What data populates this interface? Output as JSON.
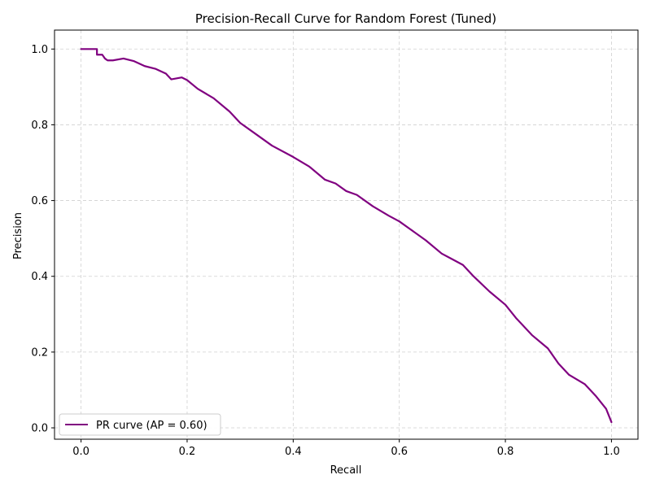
{
  "chart_data": {
    "type": "line",
    "title": "Precision-Recall Curve for Random Forest (Tuned)",
    "xlabel": "Recall",
    "ylabel": "Precision",
    "xlim": [
      -0.05,
      1.05
    ],
    "ylim": [
      -0.03,
      1.05
    ],
    "xticks": [
      0.0,
      0.2,
      0.4,
      0.6,
      0.8,
      1.0
    ],
    "yticks": [
      0.0,
      0.2,
      0.4,
      0.6,
      0.8,
      1.0
    ],
    "xtick_labels": [
      "0.0",
      "0.2",
      "0.4",
      "0.6",
      "0.8",
      "1.0"
    ],
    "ytick_labels": [
      "0.0",
      "0.2",
      "0.4",
      "0.6",
      "0.8",
      "1.0"
    ],
    "grid": true,
    "legend_position": "lower-left",
    "series": [
      {
        "name": "PR curve (AP = 0.60)",
        "color": "#800080",
        "x": [
          0.0,
          0.03,
          0.03,
          0.04,
          0.045,
          0.05,
          0.06,
          0.08,
          0.1,
          0.12,
          0.14,
          0.16,
          0.17,
          0.19,
          0.2,
          0.22,
          0.25,
          0.28,
          0.3,
          0.33,
          0.36,
          0.4,
          0.43,
          0.46,
          0.48,
          0.5,
          0.52,
          0.55,
          0.58,
          0.6,
          0.62,
          0.65,
          0.68,
          0.7,
          0.72,
          0.74,
          0.77,
          0.8,
          0.82,
          0.85,
          0.88,
          0.9,
          0.92,
          0.95,
          0.97,
          0.99,
          1.0
        ],
        "y": [
          1.0,
          1.0,
          0.985,
          0.985,
          0.975,
          0.97,
          0.97,
          0.975,
          0.968,
          0.955,
          0.948,
          0.935,
          0.92,
          0.925,
          0.918,
          0.895,
          0.87,
          0.835,
          0.805,
          0.775,
          0.745,
          0.715,
          0.69,
          0.655,
          0.645,
          0.625,
          0.615,
          0.585,
          0.56,
          0.545,
          0.525,
          0.495,
          0.46,
          0.445,
          0.43,
          0.4,
          0.36,
          0.325,
          0.29,
          0.245,
          0.21,
          0.17,
          0.14,
          0.115,
          0.085,
          0.05,
          0.015
        ]
      }
    ]
  }
}
